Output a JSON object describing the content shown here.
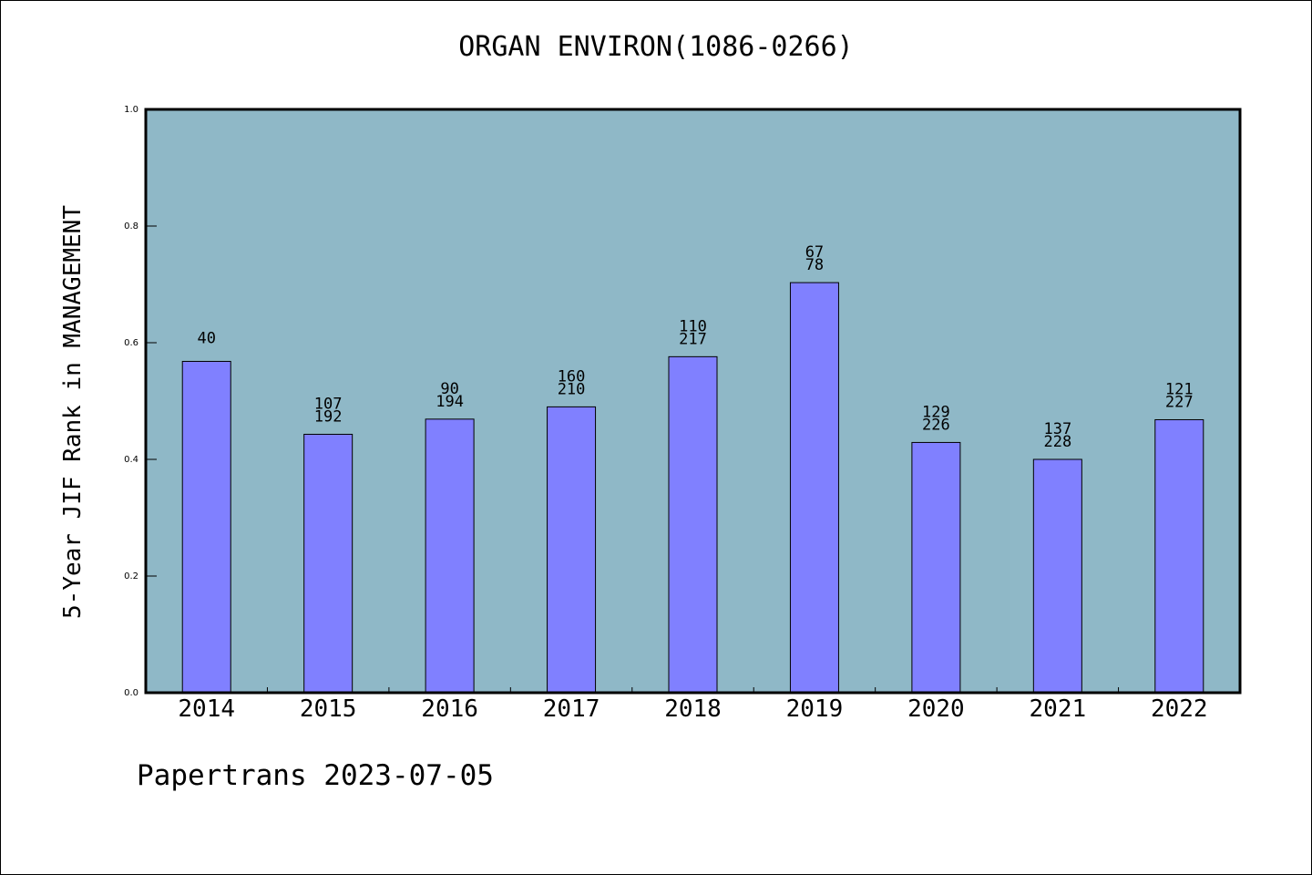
{
  "chart_data": {
    "type": "bar",
    "title": "ORGAN ENVIRON(1086-0266)",
    "ylabel": "5-Year JIF Rank in MANAGEMENT",
    "xlabel": "",
    "categories": [
      "2014",
      "2015",
      "2016",
      "2017",
      "2018",
      "2019",
      "2020",
      "2021",
      "2022"
    ],
    "values": [
      0.568,
      0.443,
      0.469,
      0.49,
      0.576,
      0.703,
      0.429,
      0.4,
      0.468
    ],
    "bar_labels": [
      [
        "40"
      ],
      [
        "107",
        "192"
      ],
      [
        "90",
        "194"
      ],
      [
        "160",
        "210"
      ],
      [
        "110",
        "217"
      ],
      [
        "67",
        "78"
      ],
      [
        "129",
        "226"
      ],
      [
        "137",
        "228"
      ],
      [
        "121",
        "227"
      ]
    ],
    "ylim": [
      0,
      1.0
    ],
    "yticks": [
      "0.0",
      "0.2",
      "0.4",
      "0.6",
      "0.8",
      "1.0"
    ],
    "grid": false,
    "colors": {
      "plot_background": "#8fb8c7",
      "bar_fill": "#8080ff",
      "bar_stroke": "#000000"
    }
  },
  "footer": {
    "note": "Papertrans 2023-07-05"
  }
}
